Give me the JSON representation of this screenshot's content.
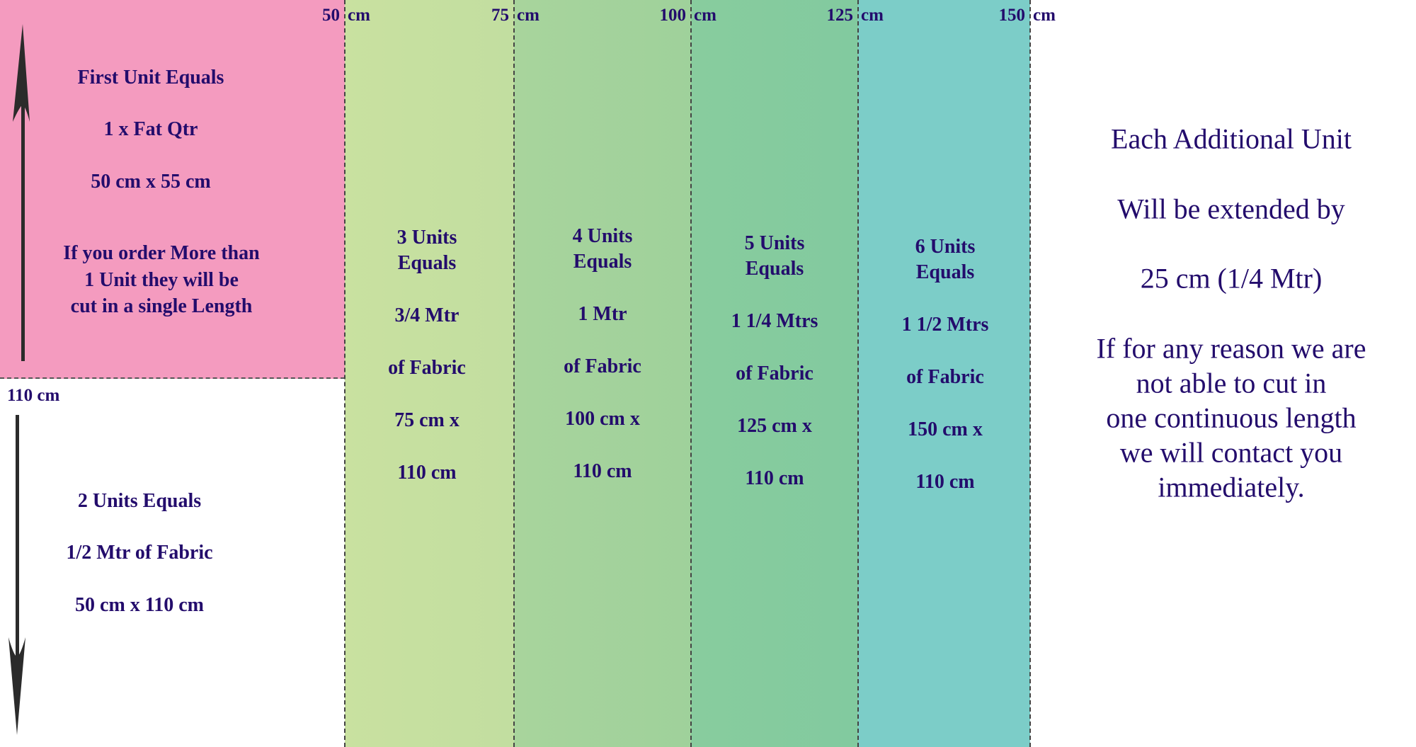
{
  "colors": {
    "pink": "#f49bbf",
    "green_light": "#c5dfa0",
    "green_mid": "#a2d29c",
    "green": "#85cb9f",
    "teal": "#7ccdc8",
    "text": "#230c6c"
  },
  "top_labels": [
    {
      "num": "50",
      "unit": "cm"
    },
    {
      "num": "75",
      "unit": "cm"
    },
    {
      "num": "100",
      "unit": "cm"
    },
    {
      "num": "125",
      "unit": "cm"
    },
    {
      "num": "150",
      "unit": "cm"
    }
  ],
  "side_label": "110 cm",
  "first_unit": {
    "lines": [
      "First Unit Equals",
      "1 x Fat Qtr",
      "50 cm x 55 cm",
      "If you order More than",
      "1 Unit they will be",
      "cut in a single Length"
    ]
  },
  "two_units": {
    "lines": [
      "2 Units Equals",
      "1/2 Mtr of Fabric",
      "50 cm x 110 cm"
    ]
  },
  "columns": [
    {
      "lines": [
        "3 Units",
        "Equals",
        "3/4 Mtr",
        "of Fabric",
        "75 cm x",
        "110 cm"
      ]
    },
    {
      "lines": [
        "4 Units",
        "Equals",
        "1 Mtr",
        "of Fabric",
        "100 cm x",
        "110 cm"
      ]
    },
    {
      "lines": [
        "5 Units",
        "Equals",
        "1 1/4 Mtrs",
        "of Fabric",
        "125 cm x",
        "110 cm"
      ]
    },
    {
      "lines": [
        "6 Units",
        "Equals",
        "1 1/2 Mtrs",
        "of Fabric",
        "150 cm x",
        "110 cm"
      ]
    }
  ],
  "additional": {
    "lines": [
      "Each Additional Unit",
      "Will be extended by",
      "25 cm (1/4 Mtr)",
      "If for any reason we are",
      "not able to cut in",
      "one continuous length",
      "we will contact you",
      "immediately."
    ]
  }
}
